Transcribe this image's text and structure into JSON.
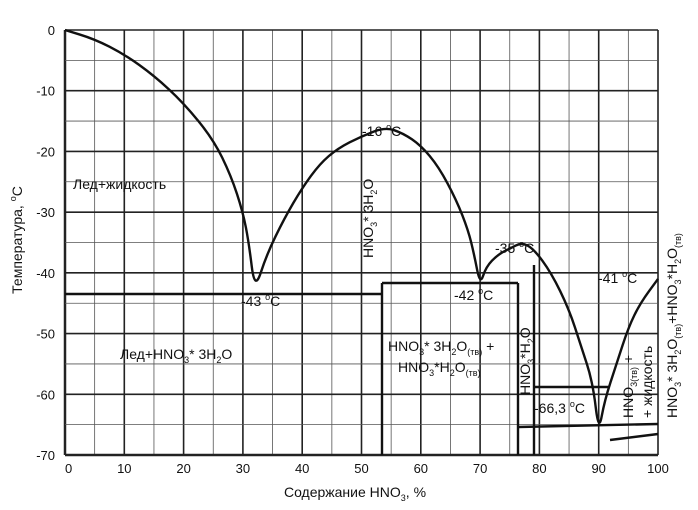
{
  "chart_data": {
    "type": "line",
    "xlabel": "Содержание HNO3, %",
    "ylabel": "Температура, °С",
    "xlim": [
      0,
      100
    ],
    "ylim": [
      -70,
      0
    ],
    "x_ticks": [
      "0",
      "10",
      "20",
      "30",
      "40",
      "50",
      "60",
      "70",
      "80",
      "90",
      "100"
    ],
    "y_ticks": [
      "0",
      "-10",
      "-20",
      "-30",
      "-40",
      "-50",
      "-60",
      "-70"
    ],
    "grid": true,
    "series": [
      {
        "values_xy": [
          [
            0,
            0
          ],
          [
            5,
            -1.5
          ],
          [
            10,
            -4
          ],
          [
            15,
            -7.5
          ],
          [
            20,
            -12
          ],
          [
            25,
            -18
          ],
          [
            28,
            -24
          ],
          [
            30,
            -30
          ],
          [
            31,
            -35
          ],
          [
            32,
            -43
          ],
          [
            34,
            -37
          ],
          [
            37,
            -31
          ],
          [
            40,
            -26
          ],
          [
            43,
            -22
          ],
          [
            46,
            -19.5
          ],
          [
            50,
            -17.5
          ],
          [
            54,
            -16
          ],
          [
            57,
            -17
          ],
          [
            60,
            -19
          ],
          [
            63,
            -22.5
          ],
          [
            66,
            -28
          ],
          [
            68,
            -33
          ],
          [
            69,
            -37
          ],
          [
            70,
            -42
          ],
          [
            71,
            -39
          ],
          [
            73,
            -37
          ],
          [
            75,
            -36
          ],
          [
            77,
            -35
          ],
          [
            79,
            -36
          ],
          [
            82,
            -40
          ],
          [
            85,
            -46
          ],
          [
            87,
            -52
          ],
          [
            89,
            -58
          ],
          [
            90,
            -66.3
          ],
          [
            91,
            -61
          ],
          [
            93,
            -55
          ],
          [
            95,
            -49
          ],
          [
            97,
            -45
          ],
          [
            100,
            -41
          ]
        ]
      }
    ],
    "annotations": {
      "eutectic1": "-43 °C",
      "peak1": "-16 °C",
      "eutectic2": "-42 °C",
      "peak2": "-35 °C",
      "eutectic3": "-66,3 °C",
      "end": "-41 °C",
      "region_ice_liquid": "Лед+жидкость",
      "region_ice_trihydrate": "Лед+HNO3*3H2O",
      "compound_trihydrate": "HNO3*3H2O",
      "compound_monohydrate": "HNO3*H2O",
      "region_tri_mono": "HNO3*3H2O(тв) + HNO3*H2O(тв)",
      "region_acid_liquid": "HNO3(тв) + жидкость",
      "region_right_solid": "HNO3*3H2O(тв)+HNO3*H2O(тв)"
    }
  }
}
